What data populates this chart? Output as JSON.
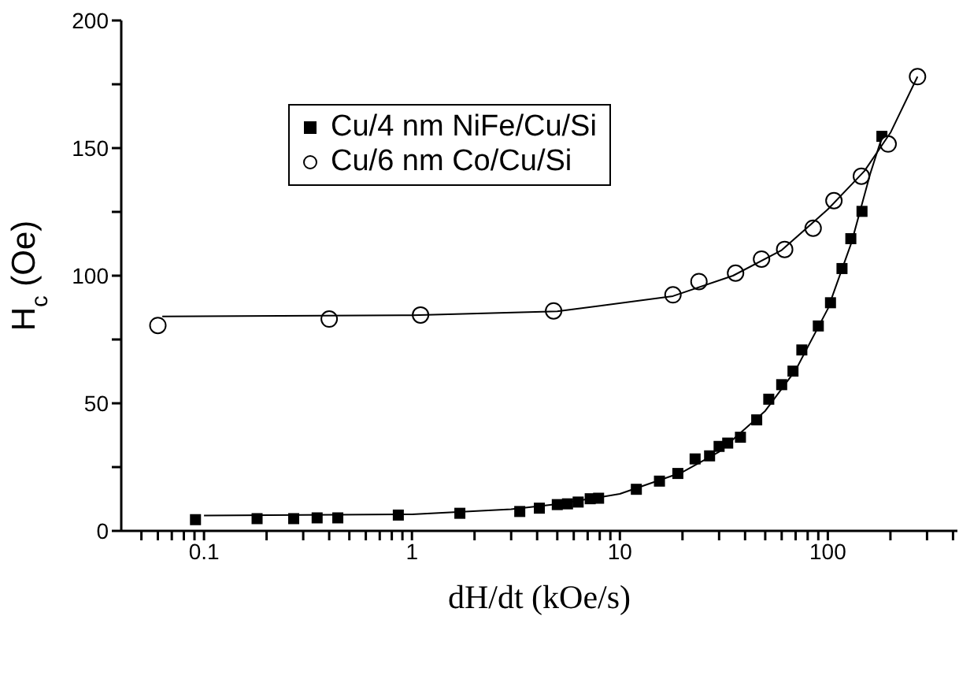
{
  "chart_data": {
    "type": "scatter",
    "xlabel": "dH/dt (kOe/s)",
    "ylabel": "H$_{c}$ (Oe)",
    "log": "x",
    "xlim": [
      0.04,
      420
    ],
    "ylim": [
      0,
      200
    ],
    "xticks": [
      {
        "value": 0.05,
        "label": null
      },
      {
        "value": 0.06,
        "label": null
      },
      {
        "value": 0.07,
        "label": null
      },
      {
        "value": 0.08,
        "label": null
      },
      {
        "value": 0.09,
        "label": null
      },
      0.1,
      {
        "value": 0.2,
        "label": null
      },
      {
        "value": 0.3,
        "label": null
      },
      {
        "value": 0.4,
        "label": null
      },
      {
        "value": 0.5,
        "label": null
      },
      {
        "value": 0.6,
        "label": null
      },
      {
        "value": 0.7,
        "label": null
      },
      {
        "value": 0.8,
        "label": null
      },
      {
        "value": 0.9,
        "label": null
      },
      1,
      {
        "value": 2,
        "label": null
      },
      {
        "value": 3,
        "label": null
      },
      {
        "value": 4,
        "label": null
      },
      {
        "value": 5,
        "label": null
      },
      {
        "value": 6,
        "label": null
      },
      {
        "value": 7,
        "label": null
      },
      {
        "value": 8,
        "label": null
      },
      {
        "value": 9,
        "label": null
      },
      10,
      {
        "value": 20,
        "label": null
      },
      {
        "value": 30,
        "label": null
      },
      {
        "value": 40,
        "label": null
      },
      {
        "value": 50,
        "label": null
      },
      {
        "value": 60,
        "label": null
      },
      {
        "value": 70,
        "label": null
      },
      {
        "value": 80,
        "label": null
      },
      {
        "value": 90,
        "label": null
      },
      100,
      {
        "value": 200,
        "label": null
      },
      {
        "value": 300,
        "label": null
      },
      {
        "value": 400,
        "label": null
      }
    ],
    "yticks": [
      0,
      {
        "value": 25,
        "label": null
      },
      50,
      {
        "value": 75,
        "label": null
      },
      100,
      {
        "value": 125,
        "label": null
      },
      150,
      {
        "value": 175,
        "label": null
      },
      200
    ],
    "grid": false,
    "legend": "top left",
    "series": [
      {
        "name": "Cu/4 nm NiFe/Cu/Si",
        "color": "#000000",
        "marker": "square",
        "x": [
          0.091,
          0.18,
          0.27,
          0.35,
          0.44,
          0.86,
          1.7,
          3.3,
          4.1,
          5.0,
          5.6,
          6.3,
          7.2,
          7.9,
          12,
          15.5,
          19,
          23,
          27,
          30,
          33,
          38,
          45.5,
          52,
          60,
          68,
          75,
          90,
          103,
          117,
          129,
          146,
          182
        ],
        "values": [
          4.4,
          4.8,
          4.8,
          5.1,
          5.1,
          6.2,
          6.9,
          7.6,
          8.9,
          10.3,
          10.6,
          11.3,
          12.6,
          12.8,
          16.3,
          19.5,
          22.5,
          28.2,
          29.4,
          33.1,
          34.4,
          36.7,
          43.5,
          51.6,
          57.3,
          62.6,
          70.9,
          80.3,
          89.4,
          102.8,
          114.5,
          125.2,
          154.6
        ]
      },
      {
        "name": "Cu/6 nm Co/Cu/Si",
        "color": "#000000",
        "marker": "circle",
        "x": [
          0.06,
          0.4,
          1.1,
          4.8,
          18,
          24,
          36,
          48,
          62,
          85,
          107,
          145,
          195,
          270
        ],
        "values": [
          80.5,
          83,
          84.6,
          86.2,
          92.5,
          97.7,
          101,
          106.5,
          110.3,
          118.6,
          129.4,
          139,
          151.6,
          178
        ]
      },
      {
        "type": "line",
        "color": "#000000",
        "marker": "none",
        "x": [
          0.1,
          1,
          3,
          5,
          10,
          20,
          30,
          50,
          70,
          100,
          130,
          160,
          185
        ],
        "values": [
          6,
          6.5,
          8.5,
          10.5,
          14.5,
          23,
          31,
          47,
          63,
          87,
          113,
          140,
          156
        ]
      },
      {
        "type": "line",
        "color": "#000000",
        "marker": "none",
        "x": [
          0.063,
          1,
          5,
          18,
          35,
          60,
          100,
          150,
          200,
          270
        ],
        "values": [
          84,
          84.5,
          86,
          92,
          100,
          110,
          126,
          141,
          156,
          178
        ]
      }
    ]
  }
}
